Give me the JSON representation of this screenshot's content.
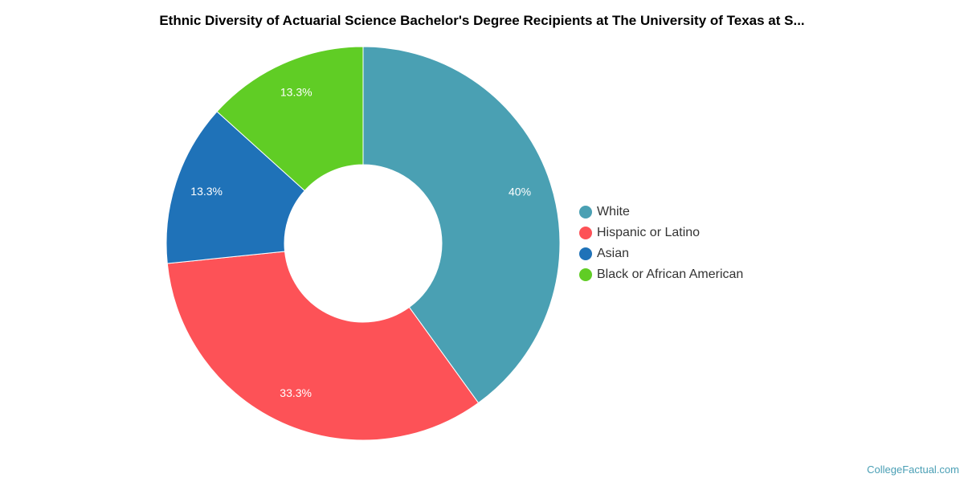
{
  "chart_data": {
    "type": "pie",
    "donut": true,
    "title": "Ethnic Diversity of Actuarial Science Bachelor's Degree Recipients at The University of Texas at S...",
    "legend_position": "right",
    "slices": [
      {
        "name": "White",
        "value": 40,
        "label": "40%",
        "color": "#4aa0b3"
      },
      {
        "name": "Hispanic or Latino",
        "value": 33.3,
        "label": "33.3%",
        "color": "#fd5257"
      },
      {
        "name": "Asian",
        "value": 13.3,
        "label": "13.3%",
        "color": "#1f72b8"
      },
      {
        "name": "Black or African American",
        "value": 13.3,
        "label": "13.3%",
        "color": "#60cd25"
      }
    ]
  },
  "watermark": "CollegeFactual.com"
}
